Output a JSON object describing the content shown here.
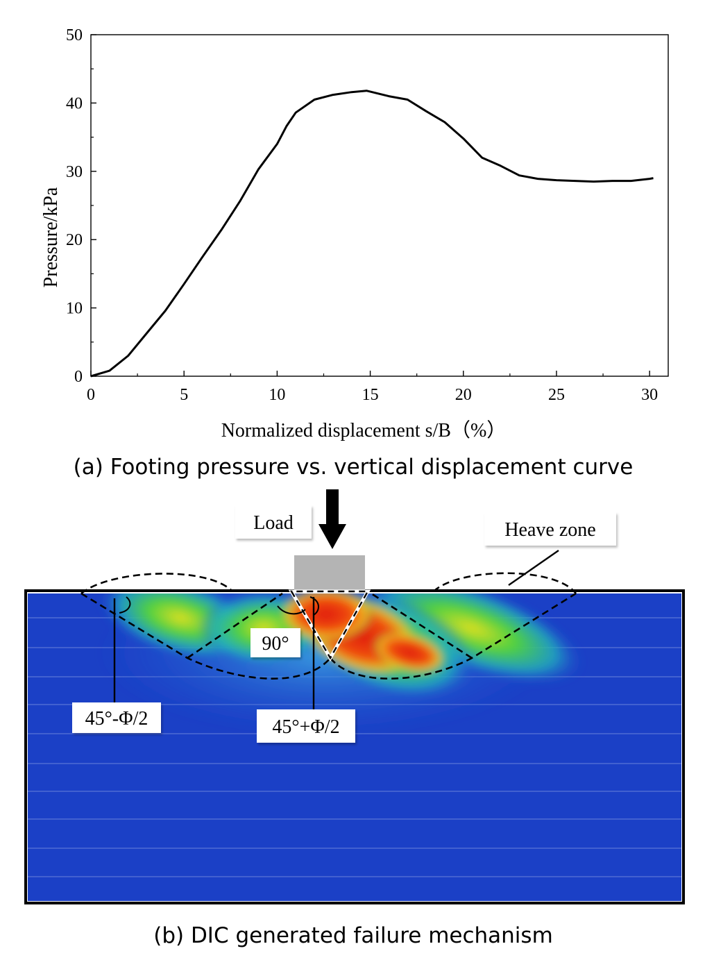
{
  "chart_data": {
    "type": "line",
    "xlabel": "Normalized displacement s/B（%）",
    "ylabel": "Pressure/kPa",
    "xlim": [
      0,
      31
    ],
    "ylim": [
      0,
      50
    ],
    "x_ticks": [
      "0",
      "5",
      "10",
      "15",
      "20",
      "25",
      "30"
    ],
    "y_ticks": [
      "0",
      "10",
      "20",
      "30",
      "40",
      "50"
    ],
    "grid": false,
    "series": [
      {
        "x": [
          0,
          1,
          2,
          3,
          4,
          5,
          6,
          7,
          8,
          9,
          10,
          10.5,
          11,
          12,
          13,
          14,
          14.8,
          16,
          17,
          18,
          19,
          20,
          21,
          22,
          23,
          24,
          25,
          26,
          27,
          28,
          29,
          30,
          30.2
        ],
        "values": [
          0,
          0.8,
          3.0,
          6.3,
          9.6,
          13.5,
          17.5,
          21.4,
          25.6,
          30.3,
          34.0,
          36.6,
          38.6,
          40.5,
          41.2,
          41.6,
          41.8,
          41.0,
          40.5,
          38.8,
          37.2,
          34.8,
          32.0,
          30.8,
          29.4,
          28.9,
          28.7,
          28.6,
          28.5,
          28.6,
          28.6,
          28.9,
          29.0
        ]
      }
    ]
  },
  "captions": {
    "a": "(a) Footing pressure vs. vertical displacement curve",
    "b": "(b) DIC generated failure mechanism"
  },
  "diagram": {
    "load_label": "Load",
    "heave_label": "Heave zone",
    "angle_90": "90°",
    "angle_left": "45°-Φ/2",
    "angle_right": "45°+Φ/2"
  },
  "colors": {
    "background_field": "#1a3fc8",
    "high_strain": "#e8241a",
    "footing": "#b4b4b4"
  }
}
